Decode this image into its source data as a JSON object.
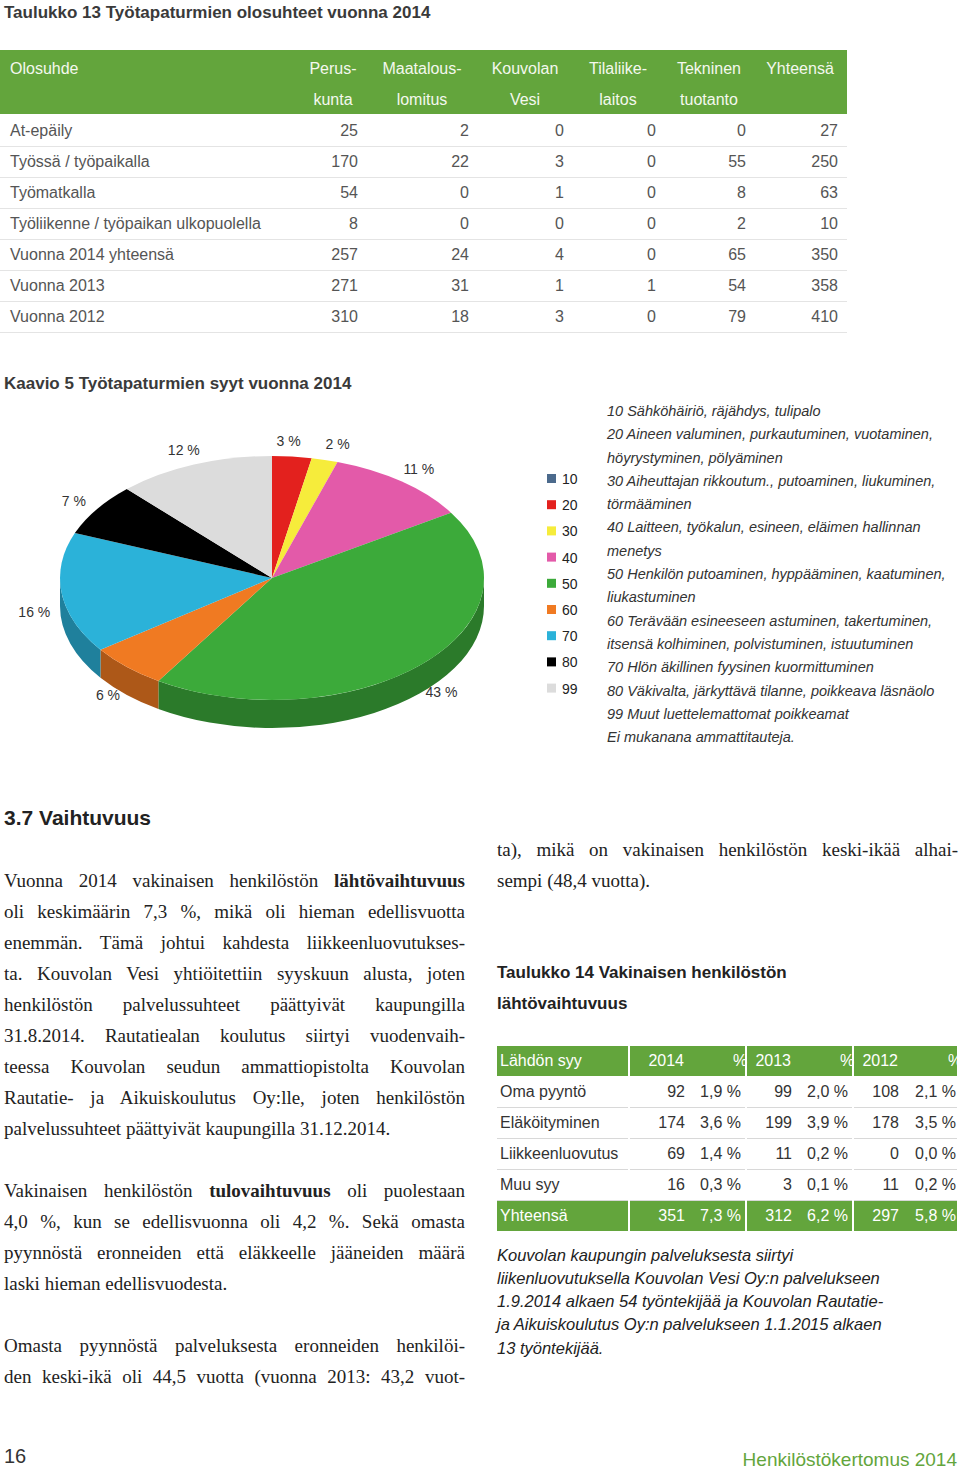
{
  "table13": {
    "title": "Taulukko 13 Työtapaturmien olosuhteet vuonna 2014",
    "header": [
      [
        "Olosuhde"
      ],
      [
        "Perus-",
        "kunta"
      ],
      [
        "Maatalous-",
        "lomitus"
      ],
      [
        "Kouvolan",
        "Vesi"
      ],
      [
        "Tilaliike-",
        "laitos"
      ],
      [
        "Tekninen",
        "tuotanto"
      ],
      [
        "Yhteensä"
      ]
    ],
    "rows": [
      [
        "At-epäily",
        "25",
        "2",
        "0",
        "0",
        "0",
        "27"
      ],
      [
        "Työssä / työpaikalla",
        "170",
        "22",
        "3",
        "0",
        "55",
        "250"
      ],
      [
        "Työmatkalla",
        "54",
        "0",
        "1",
        "0",
        "8",
        "63"
      ],
      [
        "Työliikenne / työpaikan ulkopuolella",
        "8",
        "0",
        "0",
        "0",
        "2",
        "10"
      ],
      [
        "Vuonna 2014 yhteensä",
        "257",
        "24",
        "4",
        "0",
        "65",
        "350"
      ],
      [
        "Vuonna 2013",
        "271",
        "31",
        "1",
        "1",
        "54",
        "358"
      ],
      [
        "Vuonna 2012",
        "310",
        "18",
        "3",
        "0",
        "79",
        "410"
      ]
    ]
  },
  "chart_data": {
    "type": "pie",
    "title": "Kaavio 5 Työtapaturmien syyt vuonna 2014",
    "categories": [
      "10",
      "20",
      "30",
      "40",
      "50",
      "60",
      "70",
      "80",
      "99"
    ],
    "values": [
      0,
      3,
      2,
      11,
      43,
      6,
      16,
      7,
      12
    ],
    "value_labels": [
      null,
      "3 %",
      "2 %",
      "11 %",
      "43 %",
      "6 %",
      "16 %",
      "7 %",
      "12 %"
    ],
    "colors": [
      "#4b6a8c",
      "#e3211e",
      "#f6ec3b",
      "#e35aa9",
      "#3caa3a",
      "#f07a22",
      "#2bb2d9",
      "#000000",
      "#dcdcdc"
    ],
    "data_labels": true,
    "legend": "right"
  },
  "legend_notes": [
    "10 Sähköhäiriö, räjähdys, tulipalo",
    "20 Aineen valuminen, purkautuminen, vuotaminen, höyrystyminen, pölyäminen",
    "30 Aiheuttajan rikkoutum., putoaminen, liukuminen, törmääminen",
    "40 Laitteen, työkalun, esineen, eläimen hallinnan menetys",
    "50 Henkilön putoaminen, hyppääminen, kaatuminen, liukastuminen",
    "60 Terävään esineeseen astuminen, takertuminen, itsensä kolhiminen, polvistuminen, istuutuminen",
    "70 Hlön äkillinen fyysinen kuormittuminen",
    "80 Väkivalta, järkyttävä tilanne, poikkeava läsnäolo",
    "99 Muut luettelemattomat poikkeamat",
    "Ei mukanana ammattitauteja."
  ],
  "section": {
    "heading": "3.7 Vaihtuvuus",
    "bold_terms": [
      "lähtövaihtuvuus",
      "tulovaihtuvuus"
    ],
    "paragraphs": [
      [
        "Vuonna 2014 vakinaisen henkilöstön lähtövaihtuvuus",
        "oli keskimäärin 7,3 %, mikä oli hieman edellisvuotta",
        "enemmän. Tämä johtui kahdesta liikkeenluovutukses-",
        "ta. Kouvolan Vesi yhtiöitettiin syyskuun alusta, joten",
        "henkilöstön palvelussuhteet päättyivät kaupungilla",
        "31.8.2014. Rautatiealan koulutus siirtyi vuodenvaih-",
        "teessa Kouvolan seudun ammattiopistolta Kouvolan",
        "Rautatie- ja Aikuiskoulutus Oy:lle, joten henkilöstön",
        "palvelussuhteet päättyivät kaupungilla 31.12.2014."
      ],
      [
        "Vakinaisen henkilöstön tulovaihtuvuus oli puolestaan",
        "4,0 %, kun se edellisvuonna oli 4,2 %. Sekä omasta",
        "pyynnöstä eronneiden että eläkkeelle jääneiden määrä",
        "laski hieman edellisvuodesta."
      ],
      [
        "Omasta pyynnöstä palveluksesta eronneiden henkilöi-",
        "den keski-ikä oli 44,5 vuotta (vuonna 2013: 43,2 vuot-"
      ]
    ],
    "continuation": [
      "ta), mikä on vakinaisen henkilöstön keski-ikää alhai-",
      "sempi (48,4 vuotta)."
    ]
  },
  "table14": {
    "title_lines": [
      "Taulukko 14 Vakinaisen henkilöstön",
      "lähtövaihtuvuus"
    ],
    "header": [
      "Lähdön syy",
      "2014",
      "%",
      "2013",
      "%",
      "2012",
      "%"
    ],
    "rows": [
      [
        "Oma pyyntö",
        "92",
        "1,9 %",
        "99",
        "2,0 %",
        "108",
        "2,1 %"
      ],
      [
        "Eläköityminen",
        "174",
        "3,6 %",
        "199",
        "3,9 %",
        "178",
        "3,5 %"
      ],
      [
        "Liikkeenluovutus",
        "69",
        "1,4 %",
        "11",
        "0,2 %",
        "0",
        "0,0 %"
      ],
      [
        "Muu syy",
        "16",
        "0,3 %",
        "3",
        "0,1 %",
        "11",
        "0,2 %"
      ]
    ],
    "total": [
      "Yhteensä",
      "351",
      "7,3 %",
      "312",
      "6,2 %",
      "297",
      "5,8 %"
    ]
  },
  "note": [
    "Kouvolan kaupungin palveluksesta siirtyi",
    "liikenluovutuksella Kouvolan Vesi Oy:n palvelukseen",
    "1.9.2014 alkaen 54 työntekijää ja Kouvolan Rautatie-",
    "ja Aikuiskoulutus Oy:n palvelukseen 1.1.2015 alkaen",
    "13 työntekijää."
  ],
  "footer": {
    "page": "16",
    "publication": "Henkilöstökertomus 2014"
  }
}
